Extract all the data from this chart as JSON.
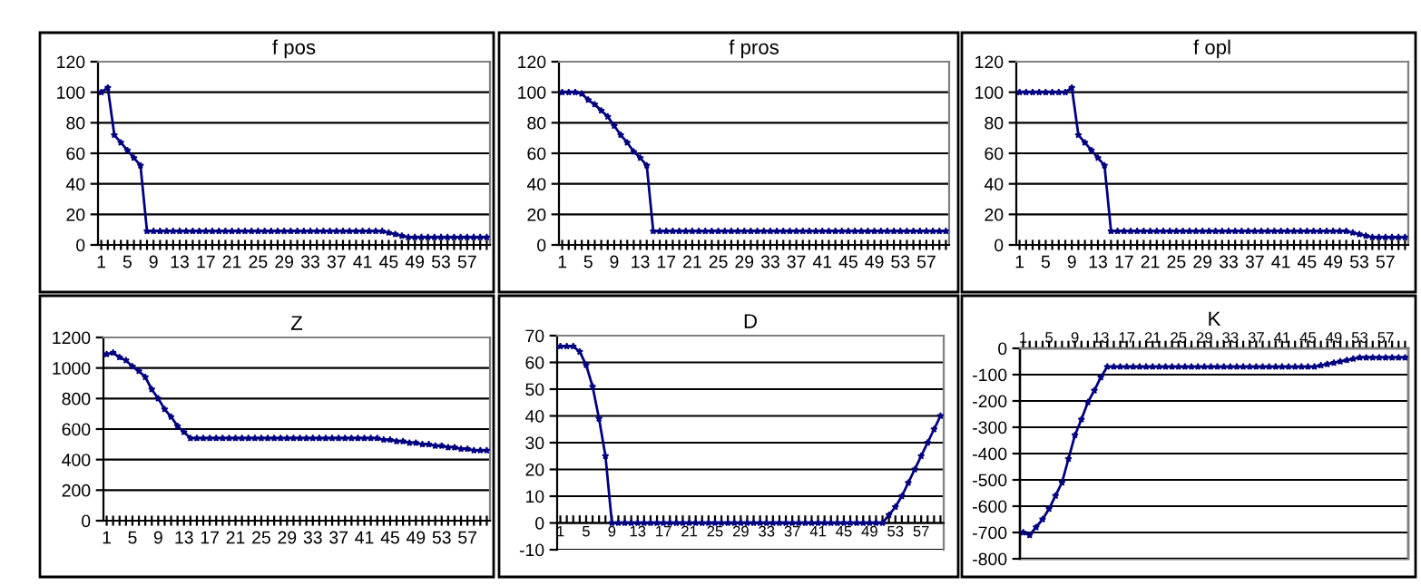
{
  "chart_data": [
    {
      "type": "line",
      "title": "f pos",
      "categories": [
        "1",
        null,
        null,
        null,
        "5",
        null,
        null,
        null,
        "9",
        null,
        null,
        null,
        "13",
        null,
        null,
        null,
        "17",
        null,
        null,
        null,
        "21",
        null,
        null,
        null,
        "25",
        null,
        null,
        null,
        "29",
        null,
        null,
        null,
        "33",
        null,
        null,
        null,
        "37",
        null,
        null,
        null,
        "41",
        null,
        null,
        null,
        "45",
        null,
        null,
        null,
        "49",
        null,
        null,
        null,
        "53",
        null,
        null,
        null,
        "57",
        null,
        null,
        null
      ],
      "series": [
        {
          "color": "#000080",
          "values": [
            100,
            103,
            72,
            67,
            62,
            57,
            52,
            9,
            9,
            9,
            9,
            9,
            9,
            9,
            9,
            9,
            9,
            9,
            9,
            9,
            9,
            9,
            9,
            9,
            9,
            9,
            9,
            9,
            9,
            9,
            9,
            9,
            9,
            9,
            9,
            9,
            9,
            9,
            9,
            9,
            9,
            9,
            9,
            9,
            8,
            7,
            6,
            5,
            5,
            5,
            5,
            5,
            5,
            5,
            5,
            5,
            5,
            5,
            5,
            5
          ]
        }
      ],
      "ylim": [
        0,
        120
      ],
      "yticks": [
        0,
        20,
        40,
        60,
        80,
        100,
        120
      ],
      "grid": "y",
      "marker": "star",
      "line_style": "solid"
    },
    {
      "type": "line",
      "title": "f pros",
      "categories": [
        "1",
        null,
        null,
        null,
        "5",
        null,
        null,
        null,
        "9",
        null,
        null,
        null,
        "13",
        null,
        null,
        null,
        "17",
        null,
        null,
        null,
        "21",
        null,
        null,
        null,
        "25",
        null,
        null,
        null,
        "29",
        null,
        null,
        null,
        "33",
        null,
        null,
        null,
        "37",
        null,
        null,
        null,
        "41",
        null,
        null,
        null,
        "45",
        null,
        null,
        null,
        "49",
        null,
        null,
        null,
        "53",
        null,
        null,
        null,
        "57",
        null,
        null,
        null
      ],
      "series": [
        {
          "color": "#000080",
          "values": [
            100,
            100,
            100,
            99,
            95,
            92,
            88,
            84,
            78,
            72,
            67,
            61,
            57,
            52,
            9,
            9,
            9,
            9,
            9,
            9,
            9,
            9,
            9,
            9,
            9,
            9,
            9,
            9,
            9,
            9,
            9,
            9,
            9,
            9,
            9,
            9,
            9,
            9,
            9,
            9,
            9,
            9,
            9,
            9,
            9,
            9,
            9,
            9,
            9,
            9,
            9,
            9,
            9,
            9,
            9,
            9,
            9,
            9,
            9,
            9
          ]
        }
      ],
      "ylim": [
        0,
        120
      ],
      "yticks": [
        0,
        20,
        40,
        60,
        80,
        100,
        120
      ],
      "grid": "y",
      "marker": "star",
      "line_style": "solid"
    },
    {
      "type": "line",
      "title": "f opl",
      "categories": [
        "1",
        null,
        null,
        null,
        "5",
        null,
        null,
        null,
        "9",
        null,
        null,
        null,
        "13",
        null,
        null,
        null,
        "17",
        null,
        null,
        null,
        "21",
        null,
        null,
        null,
        "25",
        null,
        null,
        null,
        "29",
        null,
        null,
        null,
        "33",
        null,
        null,
        null,
        "37",
        null,
        null,
        null,
        "41",
        null,
        null,
        null,
        "45",
        null,
        null,
        null,
        "49",
        null,
        null,
        null,
        "53",
        null,
        null,
        null,
        "57",
        null,
        null,
        null
      ],
      "series": [
        {
          "color": "#000080",
          "values": [
            100,
            100,
            100,
            100,
            100,
            100,
            100,
            100,
            103,
            72,
            67,
            62,
            57,
            52,
            9,
            9,
            9,
            9,
            9,
            9,
            9,
            9,
            9,
            9,
            9,
            9,
            9,
            9,
            9,
            9,
            9,
            9,
            9,
            9,
            9,
            9,
            9,
            9,
            9,
            9,
            9,
            9,
            9,
            9,
            9,
            9,
            9,
            9,
            9,
            9,
            9,
            8,
            7,
            6,
            5,
            5,
            5,
            5,
            5,
            5
          ]
        }
      ],
      "ylim": [
        0,
        120
      ],
      "yticks": [
        0,
        20,
        40,
        60,
        80,
        100,
        120
      ],
      "grid": "y",
      "marker": "star",
      "line_style": "solid"
    },
    {
      "type": "line",
      "title": "Z",
      "categories": [
        "1",
        null,
        null,
        null,
        "5",
        null,
        null,
        null,
        "9",
        null,
        null,
        null,
        "13",
        null,
        null,
        null,
        "17",
        null,
        null,
        null,
        "21",
        null,
        null,
        null,
        "25",
        null,
        null,
        null,
        "29",
        null,
        null,
        null,
        "33",
        null,
        null,
        null,
        "37",
        null,
        null,
        null,
        "41",
        null,
        null,
        null,
        "45",
        null,
        null,
        null,
        "49",
        null,
        null,
        null,
        "53",
        null,
        null,
        null,
        "57",
        null,
        null,
        null
      ],
      "series": [
        {
          "color": "#000080",
          "values": [
            1090,
            1100,
            1070,
            1050,
            1010,
            980,
            940,
            860,
            800,
            730,
            680,
            620,
            580,
            540,
            540,
            540,
            540,
            540,
            540,
            540,
            540,
            540,
            540,
            540,
            540,
            540,
            540,
            540,
            540,
            540,
            540,
            540,
            540,
            540,
            540,
            540,
            540,
            540,
            540,
            540,
            540,
            540,
            540,
            530,
            530,
            520,
            520,
            510,
            510,
            500,
            500,
            490,
            490,
            480,
            480,
            470,
            470,
            460,
            460,
            460
          ]
        }
      ],
      "ylim": [
        0,
        1200
      ],
      "yticks": [
        0,
        200,
        400,
        600,
        800,
        1000,
        1200
      ],
      "grid": "y",
      "marker": "star",
      "line_style": "solid"
    },
    {
      "type": "line",
      "title": "D",
      "categories": [
        "1",
        null,
        null,
        null,
        "5",
        null,
        null,
        null,
        "9",
        null,
        null,
        null,
        "13",
        null,
        null,
        null,
        "17",
        null,
        null,
        null,
        "21",
        null,
        null,
        null,
        "25",
        null,
        null,
        null,
        "29",
        null,
        null,
        null,
        "33",
        null,
        null,
        null,
        "37",
        null,
        null,
        null,
        "41",
        null,
        null,
        null,
        "45",
        null,
        null,
        null,
        "49",
        null,
        null,
        null,
        "53",
        null,
        null,
        null,
        "57",
        null,
        null,
        null
      ],
      "series": [
        {
          "color": "#000080",
          "values": [
            66,
            66,
            66,
            64,
            59,
            51,
            39,
            25,
            0,
            0,
            0,
            0,
            0,
            0,
            0,
            0,
            0,
            0,
            0,
            0,
            0,
            0,
            0,
            0,
            0,
            0,
            0,
            0,
            0,
            0,
            0,
            0,
            0,
            0,
            0,
            0,
            0,
            0,
            0,
            0,
            0,
            0,
            0,
            0,
            0,
            0,
            0,
            0,
            0,
            0,
            0,
            3,
            6,
            10,
            15,
            20,
            25,
            30,
            35,
            40
          ]
        }
      ],
      "ylim": [
        -10,
        70
      ],
      "yticks": [
        -10,
        0,
        10,
        20,
        30,
        40,
        50,
        60,
        70
      ],
      "grid": "y",
      "marker": "star",
      "line_style": "solid"
    },
    {
      "type": "line",
      "title": "K",
      "categories": [
        "1",
        null,
        null,
        null,
        "5",
        null,
        null,
        null,
        "9",
        null,
        null,
        null,
        "13",
        null,
        null,
        null,
        "17",
        null,
        null,
        null,
        "21",
        null,
        null,
        null,
        "25",
        null,
        null,
        null,
        "29",
        null,
        null,
        null,
        "33",
        null,
        null,
        null,
        "37",
        null,
        null,
        null,
        "41",
        null,
        null,
        null,
        "45",
        null,
        null,
        null,
        "49",
        null,
        null,
        null,
        "53",
        null,
        null,
        null,
        "57",
        null,
        null,
        null
      ],
      "series": [
        {
          "color": "#000080",
          "values": [
            -700,
            -710,
            -680,
            -650,
            -610,
            -560,
            -510,
            -420,
            -330,
            -270,
            -205,
            -160,
            -110,
            -70,
            -70,
            -70,
            -70,
            -70,
            -70,
            -70,
            -70,
            -70,
            -70,
            -70,
            -70,
            -70,
            -70,
            -70,
            -70,
            -70,
            -70,
            -70,
            -70,
            -70,
            -70,
            -70,
            -70,
            -70,
            -70,
            -70,
            -70,
            -70,
            -70,
            -70,
            -70,
            -70,
            -65,
            -60,
            -55,
            -50,
            -45,
            -40,
            -35,
            -35,
            -35,
            -35,
            -35,
            -35,
            -35,
            -35
          ]
        }
      ],
      "ylim": [
        -800,
        0
      ],
      "yticks": [
        -800,
        -700,
        -600,
        -500,
        -400,
        -300,
        -200,
        -100,
        0
      ],
      "grid": "y",
      "marker": "star",
      "line_style": "solid"
    }
  ]
}
